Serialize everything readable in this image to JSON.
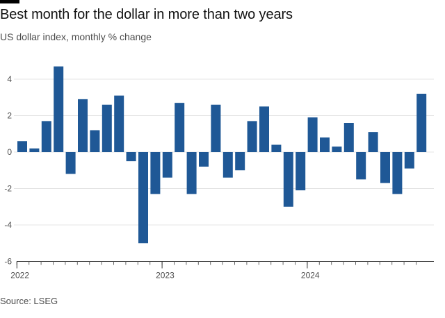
{
  "header": {
    "title": "Best month for the dollar in more than two years",
    "subtitle": "US dollar index, monthly % change"
  },
  "footer": {
    "source": "Source: LSEG"
  },
  "colors": {
    "bar": "#1f5896",
    "grid": "#e4e4e4",
    "axis": "#333333",
    "text": "#4d4d4d"
  },
  "chart_data": {
    "type": "bar",
    "title": "Best month for the dollar in more than two years",
    "subtitle": "US dollar index, monthly % change",
    "xlabel": "",
    "ylabel": "",
    "ylim": [
      -6,
      5
    ],
    "yticks": [
      4,
      2,
      0,
      -2,
      -4,
      -6
    ],
    "ytick_labels": [
      "4",
      "2",
      "0",
      "-2",
      "-4",
      "-6"
    ],
    "year_labels": [
      {
        "label": "2022",
        "month_index": 0
      },
      {
        "label": "2023",
        "month_index": 12
      },
      {
        "label": "2024",
        "month_index": 24
      }
    ],
    "grid": true,
    "categories": [
      "Jan 2022",
      "Feb 2022",
      "Mar 2022",
      "Apr 2022",
      "May 2022",
      "Jun 2022",
      "Jul 2022",
      "Aug 2022",
      "Sep 2022",
      "Oct 2022",
      "Nov 2022",
      "Dec 2022",
      "Jan 2023",
      "Feb 2023",
      "Mar 2023",
      "Apr 2023",
      "May 2023",
      "Jun 2023",
      "Jul 2023",
      "Aug 2023",
      "Sep 2023",
      "Oct 2023",
      "Nov 2023",
      "Dec 2023",
      "Jan 2024",
      "Feb 2024",
      "Mar 2024",
      "Apr 2024",
      "May 2024",
      "Jun 2024",
      "Jul 2024",
      "Aug 2024",
      "Sep 2024",
      "Oct 2024"
    ],
    "values": [
      0.6,
      0.2,
      1.7,
      4.7,
      -1.2,
      2.9,
      1.2,
      2.6,
      3.1,
      -0.5,
      -5.0,
      -2.3,
      -1.4,
      2.7,
      -2.3,
      -0.8,
      2.6,
      -1.4,
      -1.0,
      1.7,
      2.5,
      0.4,
      -3.0,
      -2.1,
      1.9,
      0.8,
      0.3,
      1.6,
      -1.5,
      1.1,
      -1.7,
      -2.3,
      -0.9,
      3.2
    ]
  }
}
